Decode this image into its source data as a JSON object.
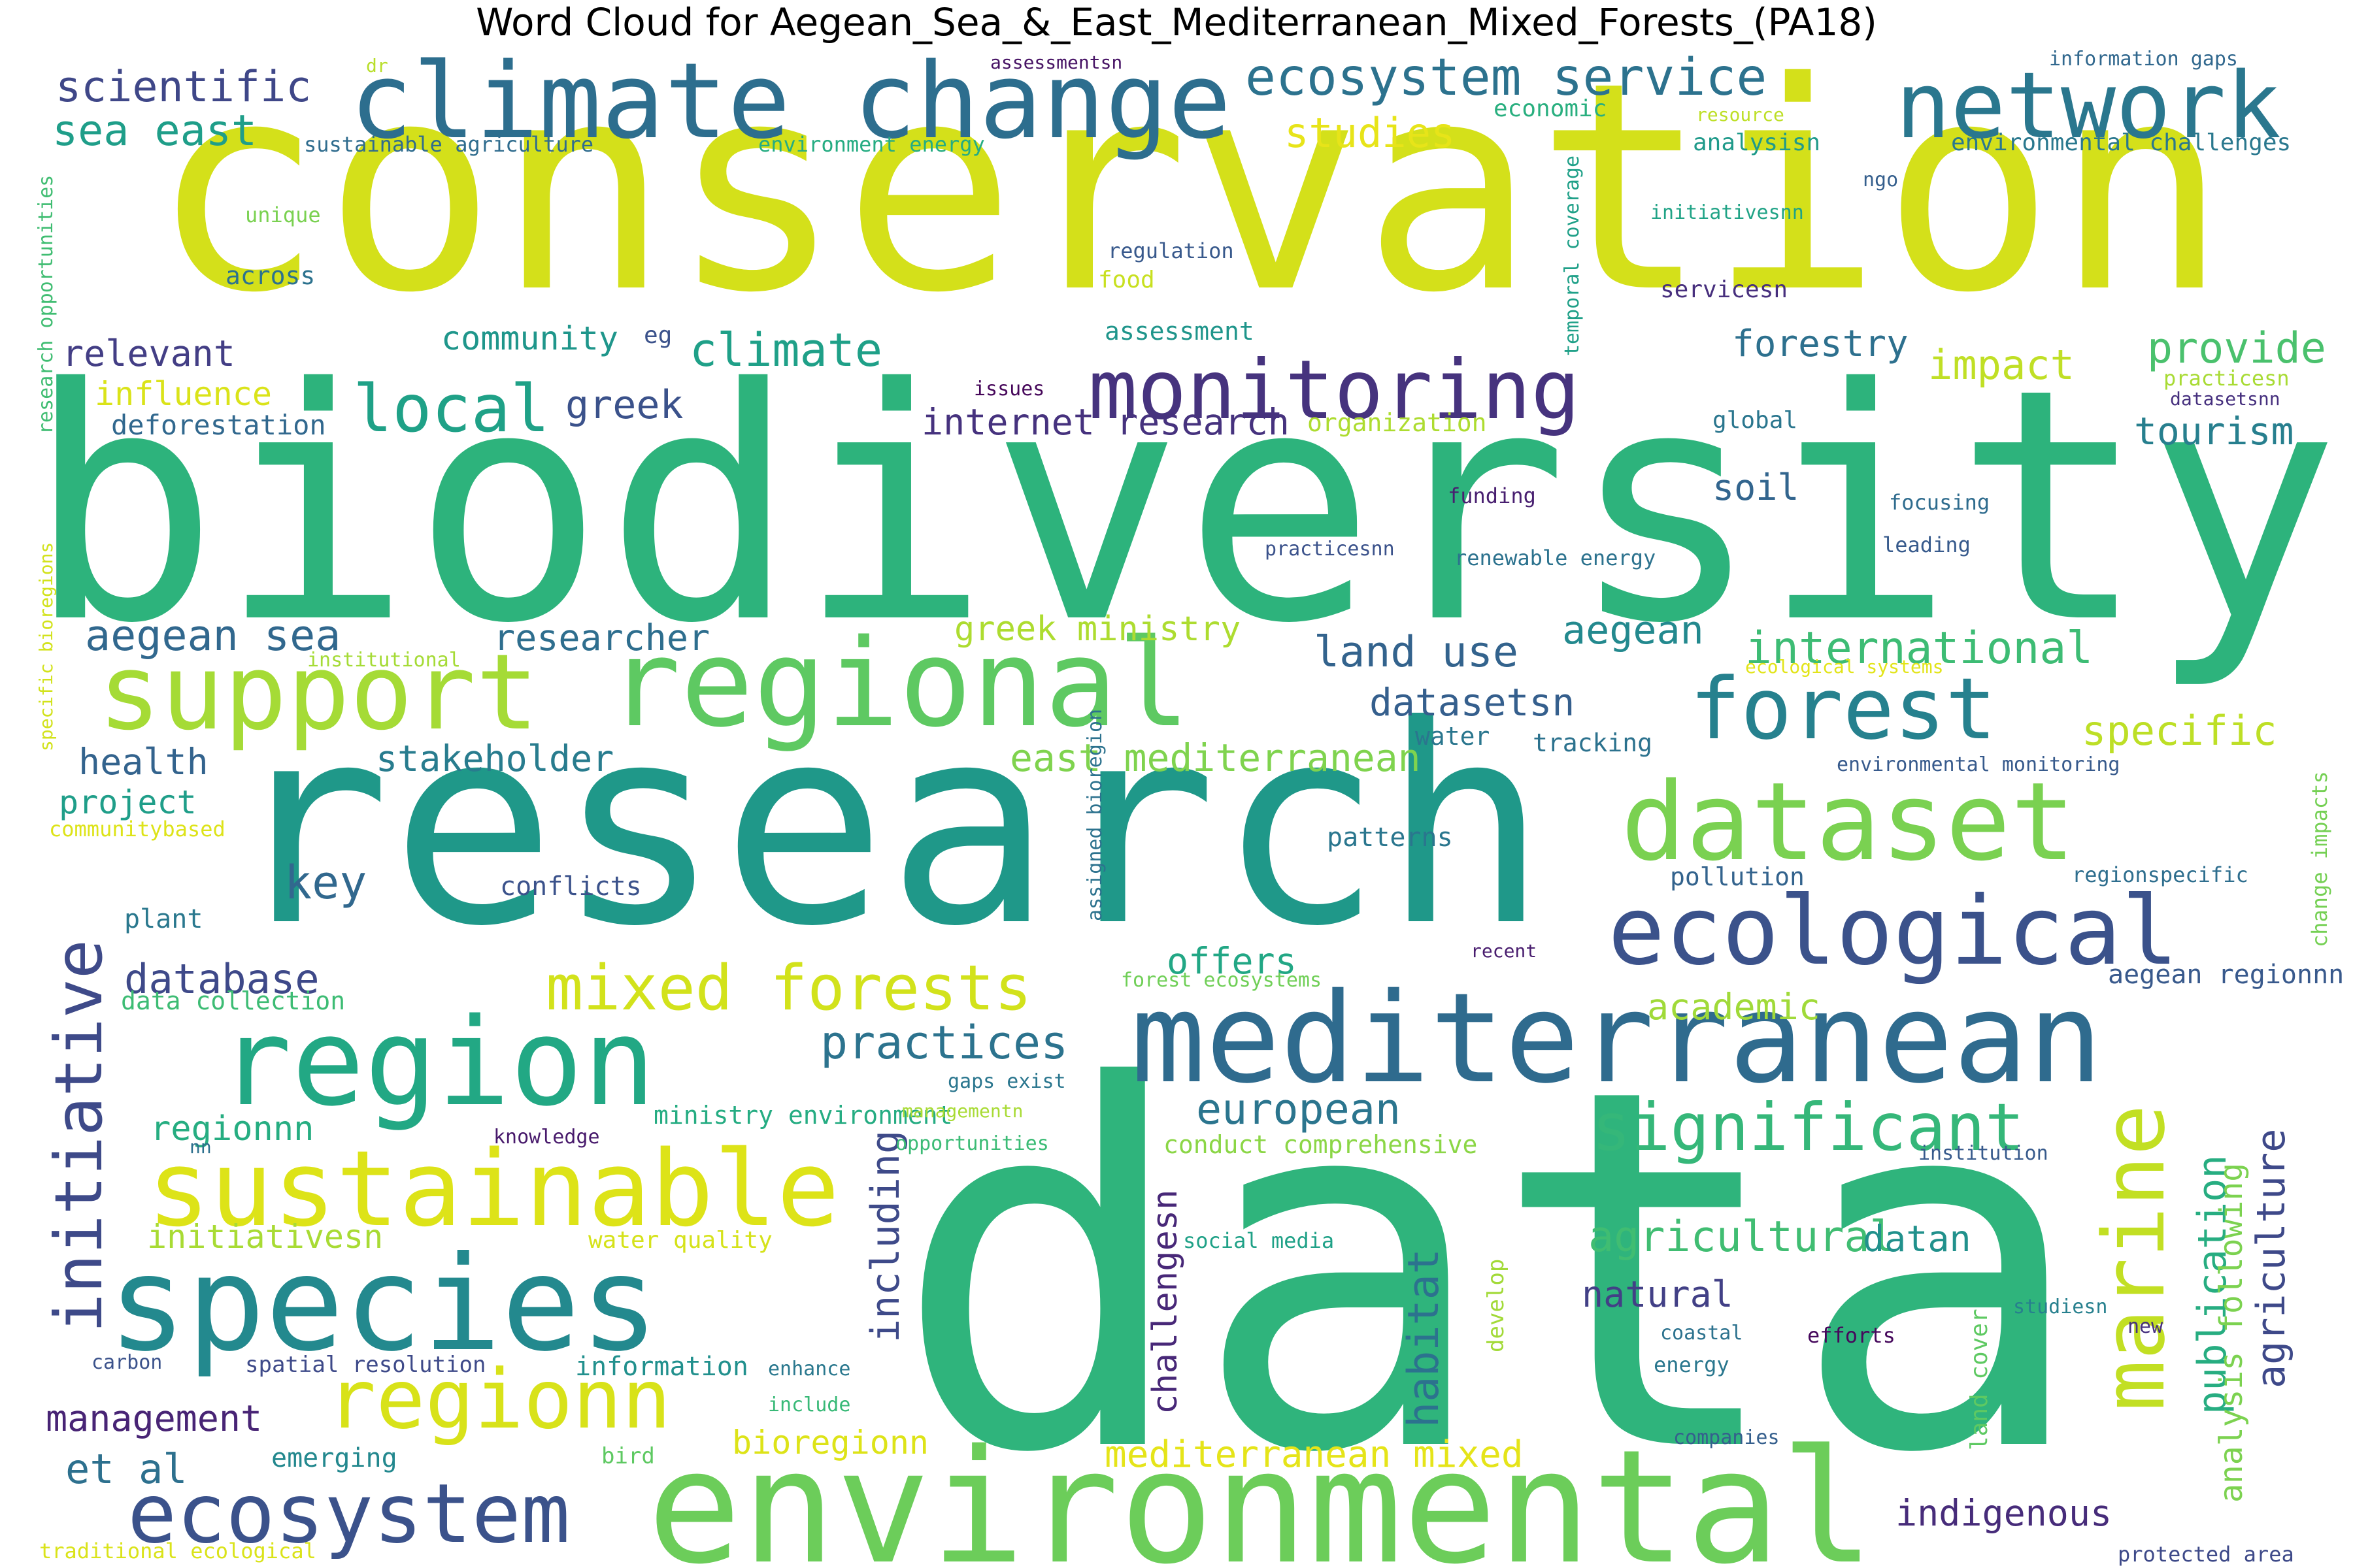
{
  "title": "Word Cloud for Aegean_Sea_&_East_Mediterranean_Mixed_Forests_(PA18)",
  "words": [
    {
      "text": "conservation",
      "color": "#d4e01a"
    },
    {
      "text": "biodiversity",
      "color": "#2db37c"
    },
    {
      "text": "research",
      "color": "#1f9889"
    },
    {
      "text": "data",
      "color": "#2fb47c"
    },
    {
      "text": "environmental",
      "color": "#6ccd5a"
    },
    {
      "text": "climate change",
      "color": "#2d6e8e"
    },
    {
      "text": "network",
      "color": "#2a778e"
    },
    {
      "text": "mediterranean",
      "color": "#2f6b8e"
    },
    {
      "text": "regional",
      "color": "#5ec962"
    },
    {
      "text": "support",
      "color": "#a5db36"
    },
    {
      "text": "dataset",
      "color": "#7ad151"
    },
    {
      "text": "ecological",
      "color": "#3b528b"
    },
    {
      "text": "species",
      "color": "#23898e"
    },
    {
      "text": "region",
      "color": "#22a884"
    },
    {
      "text": "sustainable",
      "color": "#dde318"
    },
    {
      "text": "forest",
      "color": "#26818e"
    },
    {
      "text": "monitoring",
      "color": "#46337e"
    },
    {
      "text": "ecosystem",
      "color": "#3b528b"
    },
    {
      "text": "regionn",
      "color": "#d8e219"
    },
    {
      "text": "marine",
      "color": "#c2df23"
    },
    {
      "text": "significant",
      "color": "#35b779"
    },
    {
      "text": "initiative",
      "color": "#3e4a89"
    },
    {
      "text": "local",
      "color": "#1fa187"
    },
    {
      "text": "ecosystem service",
      "color": "#2c728e"
    },
    {
      "text": "mixed forests",
      "color": "#d2e21b"
    },
    {
      "text": "aegean sea",
      "color": "#31688e"
    },
    {
      "text": "international",
      "color": "#3dbc74"
    },
    {
      "text": "land use",
      "color": "#33638d"
    },
    {
      "text": "datasetsn",
      "color": "#355f8d"
    },
    {
      "text": "mediterranean mixed",
      "color": "#e5e419"
    },
    {
      "text": "east mediterranean",
      "color": "#7fd34e"
    },
    {
      "text": "practices",
      "color": "#2c738e"
    },
    {
      "text": "european",
      "color": "#2b758e"
    },
    {
      "text": "habitat",
      "color": "#2c728e"
    },
    {
      "text": "including",
      "color": "#3e4a89"
    },
    {
      "text": "agricultural",
      "color": "#40bd72"
    },
    {
      "text": "climate",
      "color": "#1fa088"
    },
    {
      "text": "publication",
      "color": "#27ad81"
    },
    {
      "text": "agriculture",
      "color": "#3e4989"
    },
    {
      "text": "scientific",
      "color": "#3f4788"
    },
    {
      "text": "sea east",
      "color": "#1f9e89"
    },
    {
      "text": "studies",
      "color": "#e7e419"
    },
    {
      "text": "provide",
      "color": "#4ac16d"
    },
    {
      "text": "impact",
      "color": "#c0df25"
    },
    {
      "text": "tourism",
      "color": "#277f8e"
    },
    {
      "text": "forestry",
      "color": "#2d708e"
    },
    {
      "text": "greek ministry",
      "color": "#addc30"
    },
    {
      "text": "internet research",
      "color": "#46327e"
    },
    {
      "text": "greek",
      "color": "#3b528b"
    },
    {
      "text": "community",
      "color": "#1f968b"
    },
    {
      "text": "relevant",
      "color": "#433e85"
    },
    {
      "text": "influence",
      "color": "#dae319"
    },
    {
      "text": "deforestation",
      "color": "#31688e"
    },
    {
      "text": "researcher",
      "color": "#2e6e8e"
    },
    {
      "text": "aegean",
      "color": "#23898e"
    },
    {
      "text": "health",
      "color": "#33638d"
    },
    {
      "text": "stakeholder",
      "color": "#287c8e"
    },
    {
      "text": "project",
      "color": "#1f9e89"
    },
    {
      "text": "key",
      "color": "#31688e"
    },
    {
      "text": "database",
      "color": "#3e4989"
    },
    {
      "text": "specific",
      "color": "#bddf26"
    },
    {
      "text": "offers",
      "color": "#22a785"
    },
    {
      "text": "academic",
      "color": "#a0da39"
    },
    {
      "text": "datan",
      "color": "#21918c"
    },
    {
      "text": "natural",
      "color": "#424086"
    },
    {
      "text": "challengesn",
      "color": "#482878"
    },
    {
      "text": "management",
      "color": "#482475"
    },
    {
      "text": "et al",
      "color": "#2d708e"
    },
    {
      "text": "bioregionn",
      "color": "#dde318"
    },
    {
      "text": "indigenous",
      "color": "#472c7a"
    },
    {
      "text": "regionnn",
      "color": "#26ad81"
    },
    {
      "text": "initiativesn",
      "color": "#a8db34"
    },
    {
      "text": "analysis following",
      "color": "#7cd250"
    },
    {
      "text": "information",
      "color": "#21908d"
    },
    {
      "text": "emerging",
      "color": "#23888e"
    },
    {
      "text": "conflicts",
      "color": "#3b528b"
    },
    {
      "text": "patterns",
      "color": "#2a768e"
    },
    {
      "text": "plant",
      "color": "#2a788e"
    },
    {
      "text": "data collection",
      "color": "#3dbc74"
    },
    {
      "text": "ministry environment",
      "color": "#25ac82"
    },
    {
      "text": "conduct comprehensive",
      "color": "#8bd646"
    },
    {
      "text": "water quality",
      "color": "#d5e21a"
    },
    {
      "text": "social media",
      "color": "#1fa187"
    },
    {
      "text": "develop",
      "color": "#a2da37"
    },
    {
      "text": "land cover",
      "color": "#5ec962"
    },
    {
      "text": "pollution",
      "color": "#33638d"
    },
    {
      "text": "regionspecific",
      "color": "#2e6e8e"
    },
    {
      "text": "change impacts",
      "color": "#75d054"
    },
    {
      "text": "aegean regionnn",
      "color": "#38598c"
    },
    {
      "text": "tracking",
      "color": "#2c728e"
    },
    {
      "text": "water",
      "color": "#2a768e"
    },
    {
      "text": "soil",
      "color": "#32658e"
    },
    {
      "text": "assigned bioregion",
      "color": "#2c728e"
    },
    {
      "text": "temporal coverage",
      "color": "#1fa088"
    },
    {
      "text": "environmental monitoring",
      "color": "#375a8c"
    },
    {
      "text": "ecological systems",
      "color": "#e2e418"
    },
    {
      "text": "forest ecosystems",
      "color": "#70cf57"
    },
    {
      "text": "recent",
      "color": "#481c6e"
    },
    {
      "text": "assessmentsn",
      "color": "#471365"
    },
    {
      "text": "information gaps",
      "color": "#31688e"
    },
    {
      "text": "economic",
      "color": "#29af7f"
    },
    {
      "text": "resource",
      "color": "#bddf26"
    },
    {
      "text": "analysisn",
      "color": "#1f9a8a"
    },
    {
      "text": "environmental challenges",
      "color": "#2a788e"
    },
    {
      "text": "environment energy",
      "color": "#25ac82"
    },
    {
      "text": "sustainable agriculture",
      "color": "#2f6c8e"
    },
    {
      "text": "dr",
      "color": "#b8de29"
    },
    {
      "text": "unique",
      "color": "#7ad151"
    },
    {
      "text": "across",
      "color": "#2c728e"
    },
    {
      "text": "regulation",
      "color": "#38598c"
    },
    {
      "text": "food",
      "color": "#c8e020"
    },
    {
      "text": "initiativesnn",
      "color": "#20a386"
    },
    {
      "text": "ngo",
      "color": "#355f8d"
    },
    {
      "text": "servicesn",
      "color": "#472f7d"
    },
    {
      "text": "assessment",
      "color": "#1f958b"
    },
    {
      "text": "eg",
      "color": "#3b528b"
    },
    {
      "text": "issues",
      "color": "#46075a"
    },
    {
      "text": "organization",
      "color": "#addc30"
    },
    {
      "text": "global",
      "color": "#2a768e"
    },
    {
      "text": "practicesn",
      "color": "#a8db34"
    },
    {
      "text": "datasetsnn",
      "color": "#46307e"
    },
    {
      "text": "funding",
      "color": "#481f70"
    },
    {
      "text": "focusing",
      "color": "#2f6c8e"
    },
    {
      "text": "practicesnn",
      "color": "#3b528b"
    },
    {
      "text": "renewable energy",
      "color": "#2c728e"
    },
    {
      "text": "leading",
      "color": "#375a8c"
    },
    {
      "text": "institutional",
      "color": "#a5db36"
    },
    {
      "text": "research opportunities",
      "color": "#40bd72"
    },
    {
      "text": "specific bioregions",
      "color": "#d2e21b"
    },
    {
      "text": "communitybased",
      "color": "#dde318"
    },
    {
      "text": "gaps exist",
      "color": "#2a768e"
    },
    {
      "text": "managementn",
      "color": "#a8db34"
    },
    {
      "text": "opportunities",
      "color": "#3bbb75"
    },
    {
      "text": "knowledge",
      "color": "#481a6c"
    },
    {
      "text": "nn",
      "color": "#2d708e"
    },
    {
      "text": "institution",
      "color": "#375a8c"
    },
    {
      "text": "carbon",
      "color": "#3b528b"
    },
    {
      "text": "spatial resolution",
      "color": "#3e4a89"
    },
    {
      "text": "enhance",
      "color": "#2a788e"
    },
    {
      "text": "include",
      "color": "#38b977"
    },
    {
      "text": "bird",
      "color": "#5ec962"
    },
    {
      "text": "energy",
      "color": "#2a778e"
    },
    {
      "text": "coastal",
      "color": "#2c728e"
    },
    {
      "text": "efforts",
      "color": "#46085c"
    },
    {
      "text": "studiesn",
      "color": "#27808e"
    },
    {
      "text": "new",
      "color": "#46307e"
    },
    {
      "text": "companies",
      "color": "#355f8d"
    },
    {
      "text": "traditional ecological",
      "color": "#dae319"
    },
    {
      "text": "protected area",
      "color": "#3e4a89"
    }
  ]
}
